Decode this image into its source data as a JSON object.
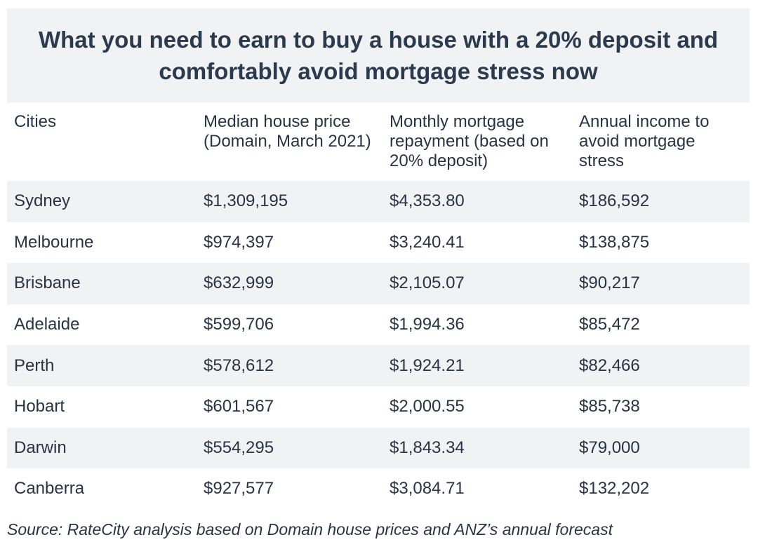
{
  "title": "What you need to earn to buy a house with a 20% deposit and comfortably avoid mortgage stress now",
  "columns": [
    "Cities",
    "Median house price (Domain, March 2021)",
    "Monthly mortgage repayment (based on 20% deposit)",
    "Annual income to avoid mortgage stress"
  ],
  "rows": [
    [
      "Sydney",
      "$1,309,195",
      "$4,353.80",
      "$186,592"
    ],
    [
      "Melbourne",
      "$974,397",
      "$3,240.41",
      "$138,875"
    ],
    [
      "Brisbane",
      "$632,999",
      "$2,105.07",
      "$90,217"
    ],
    [
      "Adelaide",
      "$599,706",
      "$1,994.36",
      "$85,472"
    ],
    [
      "Perth",
      "$578,612",
      "$1,924.21",
      "$82,466"
    ],
    [
      "Hobart",
      "$601,567",
      "$2,000.55",
      "$85,738"
    ],
    [
      "Darwin",
      "$554,295",
      "$1,843.34",
      "$79,000"
    ],
    [
      "Canberra",
      "$927,577",
      "$3,084.71",
      "$132,202"
    ]
  ],
  "source": "Source: RateCity analysis based on Domain house prices and ANZ’s annual forecast",
  "colors": {
    "stripe": "#f1f2f4",
    "title_text": "#2c3a4e",
    "body_text": "#2a3344"
  }
}
